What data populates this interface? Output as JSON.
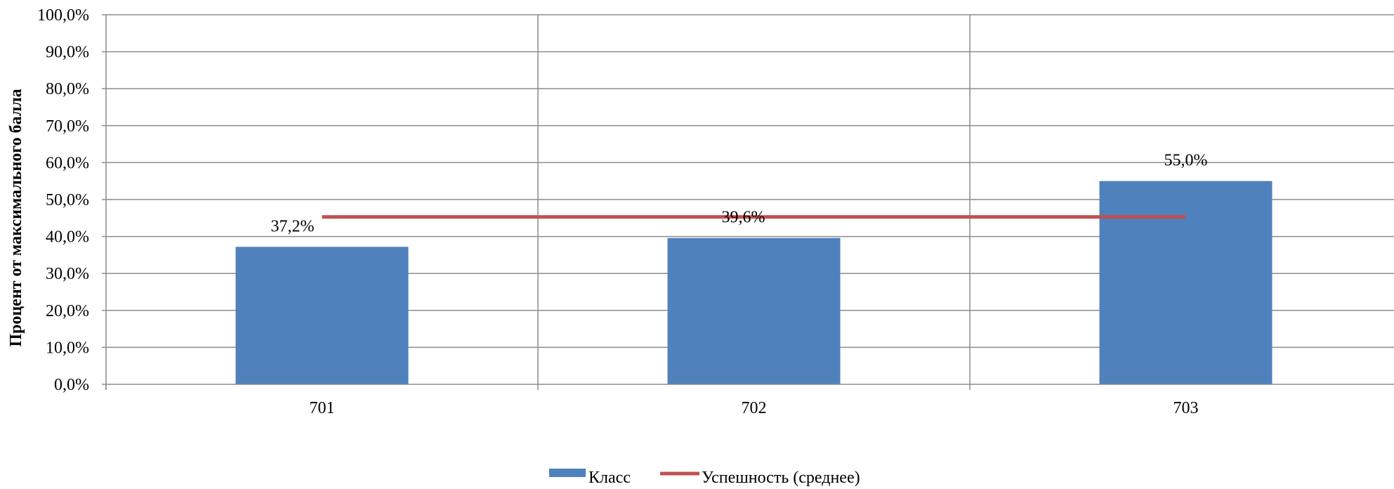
{
  "chart_data": {
    "type": "bar",
    "categories": [
      "701",
      "702",
      "703"
    ],
    "series": [
      {
        "name": "Класс",
        "type": "bar",
        "values": [
          37.2,
          39.6,
          55.0
        ],
        "data_labels": [
          "37,2%",
          "39,6%",
          "55,0%"
        ],
        "color": "#4F81BD"
      },
      {
        "name": "Успешность (среднее)",
        "type": "line",
        "values": [
          45.3,
          45.3,
          45.3
        ],
        "color": "#C0504D"
      }
    ],
    "ylabel": "Процент от максимального балла",
    "ylim": [
      0,
      100
    ],
    "y_ticks": [
      0,
      10,
      20,
      30,
      40,
      50,
      60,
      70,
      80,
      90,
      100
    ],
    "y_tick_labels": [
      "0,0%",
      "10,0%",
      "20,0%",
      "30,0%",
      "40,0%",
      "50,0%",
      "60,0%",
      "70,0%",
      "80,0%",
      "90,0%",
      "100,0%"
    ],
    "grid": true,
    "legend_position": "bottom"
  }
}
